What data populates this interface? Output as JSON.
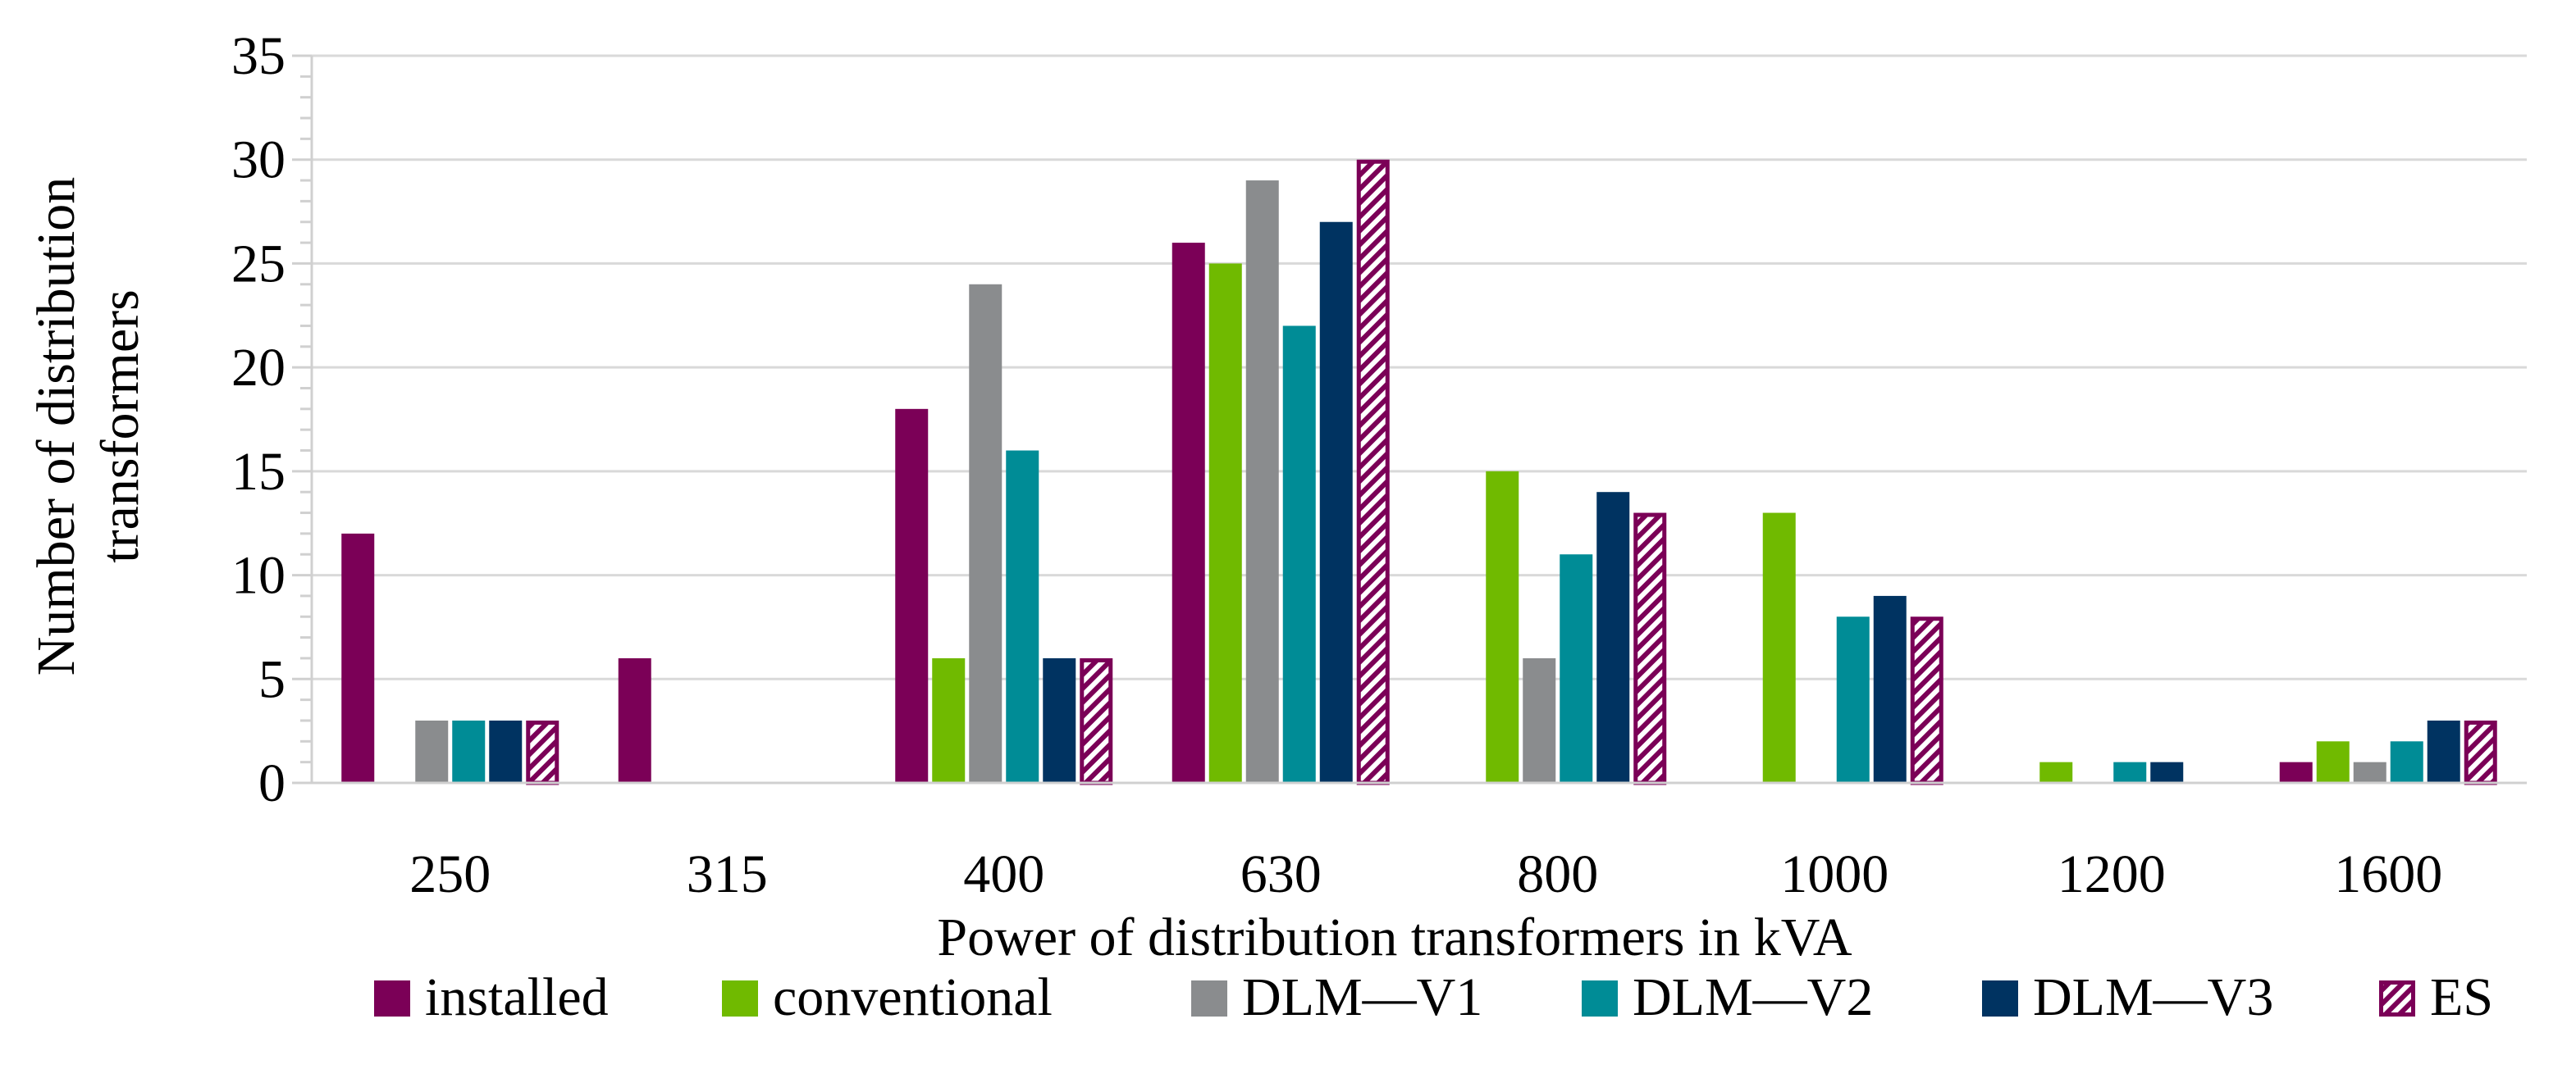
{
  "chart_data": {
    "type": "bar",
    "title": "",
    "xlabel": "Power of distribution transformers in kVA",
    "ylabel_lines": [
      "Number of distribution",
      "transformers"
    ],
    "categories": [
      "250",
      "315",
      "400",
      "630",
      "800",
      "1000",
      "1200",
      "1600"
    ],
    "ylim": [
      0,
      35
    ],
    "yticks": [
      0,
      5,
      10,
      15,
      20,
      25,
      30,
      35
    ],
    "yticks_labels": [
      "0",
      "5",
      "10",
      "15",
      "20",
      "25",
      "30",
      "35"
    ],
    "grid": true,
    "legend_position": "bottom",
    "series": [
      {
        "name": "installed",
        "color": "#7B0057",
        "pattern": "solid",
        "values": [
          12,
          6,
          18,
          26,
          0,
          0,
          0,
          1
        ]
      },
      {
        "name": "conventional",
        "color": "#70BA00",
        "pattern": "solid",
        "values": [
          0,
          0,
          6,
          25,
          15,
          13,
          1,
          2
        ]
      },
      {
        "name": "DLM—V1",
        "color": "#8A8C8E",
        "pattern": "solid",
        "values": [
          3,
          0,
          24,
          29,
          6,
          0,
          0,
          1
        ]
      },
      {
        "name": "DLM—V2",
        "color": "#008C96",
        "pattern": "solid",
        "values": [
          3,
          0,
          16,
          22,
          11,
          8,
          1,
          2
        ]
      },
      {
        "name": "DLM—V3",
        "color": "#003361",
        "pattern": "solid",
        "values": [
          3,
          0,
          6,
          27,
          14,
          9,
          1,
          3
        ]
      },
      {
        "name": "ES",
        "color": "#7B0057",
        "pattern": "hatch",
        "values": [
          3,
          0,
          6,
          30,
          13,
          8,
          0,
          3
        ]
      }
    ]
  }
}
